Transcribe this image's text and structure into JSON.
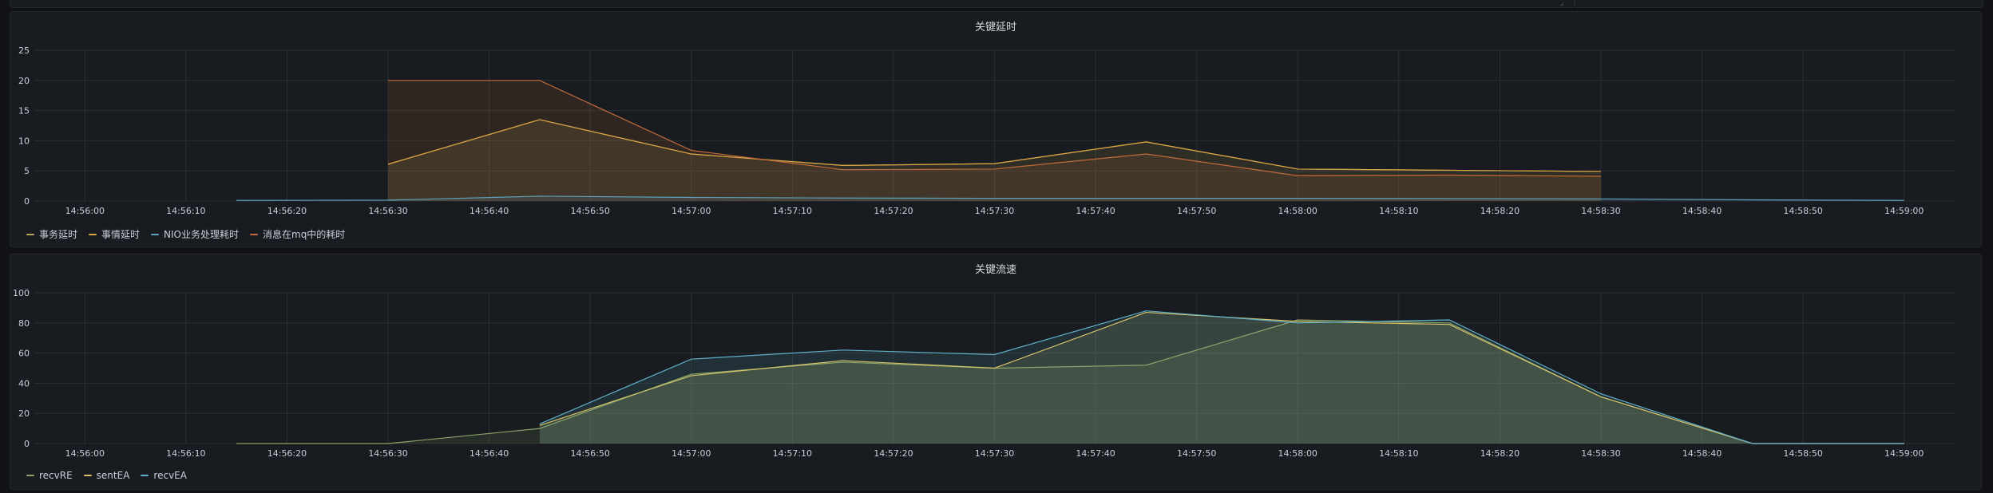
{
  "colors": {
    "background": "#111217",
    "panel_bg": "#181b1f",
    "grid": "#2c2e33",
    "axis_text": "#ccccdc"
  },
  "chart_data": [
    {
      "type": "area",
      "title": "关键延时",
      "xlabel": "",
      "ylabel": "",
      "ylim": [
        0,
        25
      ],
      "yticks": [
        0,
        5,
        10,
        15,
        20,
        25
      ],
      "xlim": [
        "14:55:55",
        "14:59:05"
      ],
      "xticks": [
        "14:56:00",
        "14:56:10",
        "14:56:20",
        "14:56:30",
        "14:56:40",
        "14:56:50",
        "14:57:00",
        "14:57:10",
        "14:57:20",
        "14:57:30",
        "14:57:40",
        "14:57:50",
        "14:58:00",
        "14:58:10",
        "14:58:20",
        "14:58:30",
        "14:58:40",
        "14:58:50",
        "14:59:00"
      ],
      "grid": true,
      "legend_position": "bottom-left",
      "series": [
        {
          "name": "事务延时",
          "color": "#b8a55a",
          "fill": true,
          "x": [
            "14:56:30",
            "14:56:45",
            "14:57:00",
            "14:57:15",
            "14:57:30",
            "14:57:45",
            "14:58:00",
            "14:58:15",
            "14:58:30"
          ],
          "values": [
            6.1,
            13.5,
            7.8,
            5.9,
            6.2,
            9.8,
            5.3,
            5.1,
            4.9
          ]
        },
        {
          "name": "事情延时",
          "color": "#d8a240",
          "fill": false,
          "x": [
            "14:56:30",
            "14:56:45",
            "14:57:00",
            "14:57:15",
            "14:57:30",
            "14:57:45",
            "14:58:00",
            "14:58:15",
            "14:58:30"
          ],
          "values": [
            6.1,
            13.5,
            7.8,
            5.9,
            6.2,
            9.8,
            5.3,
            5.1,
            4.9
          ]
        },
        {
          "name": "NIO业务处理耗时",
          "color": "#5c9fb8",
          "fill": true,
          "x": [
            "14:56:15",
            "14:56:30",
            "14:56:45",
            "14:57:00",
            "14:57:15",
            "14:57:30",
            "14:57:45",
            "14:58:00",
            "14:58:15",
            "14:58:30",
            "14:58:45",
            "14:59:00"
          ],
          "values": [
            0.1,
            0.15,
            0.8,
            0.6,
            0.5,
            0.45,
            0.45,
            0.45,
            0.4,
            0.35,
            0.2,
            0.1
          ]
        },
        {
          "name": "消息在mq中的耗时",
          "color": "#c26a3b",
          "fill": true,
          "x": [
            "14:56:30",
            "14:56:45",
            "14:57:00",
            "14:57:15",
            "14:57:30",
            "14:57:45",
            "14:58:00",
            "14:58:15",
            "14:58:30"
          ],
          "values": [
            20.0,
            20.0,
            8.4,
            5.2,
            5.3,
            7.8,
            4.2,
            4.3,
            4.1
          ]
        }
      ]
    },
    {
      "type": "area",
      "title": "关键流速",
      "xlabel": "",
      "ylabel": "",
      "ylim": [
        0,
        100
      ],
      "yticks": [
        0,
        20,
        40,
        60,
        80,
        100
      ],
      "xlim": [
        "14:55:55",
        "14:59:05"
      ],
      "xticks": [
        "14:56:00",
        "14:56:10",
        "14:56:20",
        "14:56:30",
        "14:56:40",
        "14:56:50",
        "14:57:00",
        "14:57:10",
        "14:57:20",
        "14:57:30",
        "14:57:40",
        "14:57:50",
        "14:58:00",
        "14:58:10",
        "14:58:20",
        "14:58:30",
        "14:58:40",
        "14:58:50",
        "14:59:00"
      ],
      "grid": true,
      "legend_position": "bottom-left",
      "series": [
        {
          "name": "recvRE",
          "color": "#8aa46a",
          "fill": true,
          "x": [
            "14:56:15",
            "14:56:30",
            "14:56:45",
            "14:57:00",
            "14:57:15",
            "14:57:30",
            "14:57:45",
            "14:58:00",
            "14:58:15",
            "14:58:30",
            "14:58:45",
            "14:59:00"
          ],
          "values": [
            0,
            0,
            10,
            46,
            54,
            50,
            52,
            82,
            80,
            31,
            0,
            0
          ]
        },
        {
          "name": "sentEA",
          "color": "#d6c36a",
          "fill": true,
          "x": [
            "14:56:45",
            "14:57:00",
            "14:57:15",
            "14:57:30",
            "14:57:45",
            "14:58:00",
            "14:58:15",
            "14:58:30",
            "14:58:45",
            "14:59:00"
          ],
          "values": [
            12,
            45,
            55,
            50,
            87,
            81,
            79,
            31,
            0,
            0
          ]
        },
        {
          "name": "recvEA",
          "color": "#5fb0c8",
          "fill": true,
          "x": [
            "14:56:45",
            "14:57:00",
            "14:57:15",
            "14:57:30",
            "14:57:45",
            "14:58:00",
            "14:58:15",
            "14:58:30",
            "14:58:45",
            "14:59:00"
          ],
          "values": [
            13,
            56,
            62,
            59,
            88,
            80,
            82,
            33,
            0,
            0
          ]
        }
      ]
    }
  ]
}
